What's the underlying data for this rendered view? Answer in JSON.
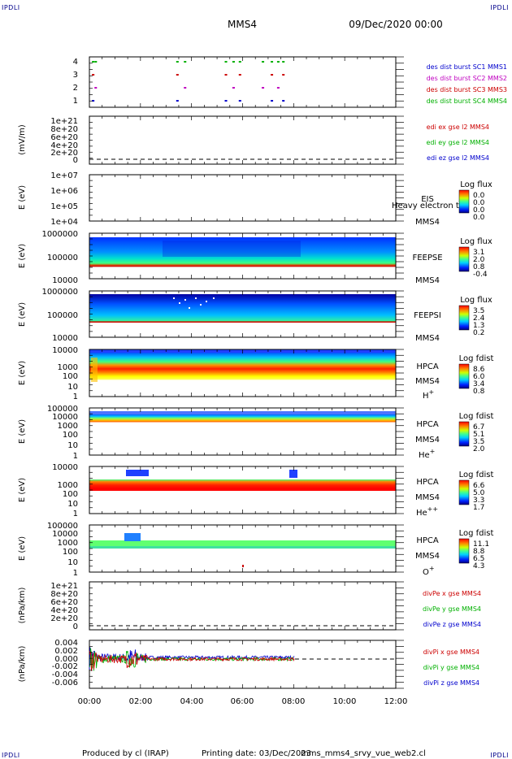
{
  "corner_label": "IPDLI",
  "header": {
    "spacecraft": "MMS4",
    "date": "09/Dec/2020 00:00"
  },
  "footer": {
    "produced_by": "Produced by cl (IRAP)",
    "printing_date": "Printing date: 03/Dec/2023",
    "script": "mms_mms4_srvy_vue_web2.cl"
  },
  "time_axis": {
    "range_hours": [
      0,
      12
    ],
    "tick_labels": [
      "00:00",
      "02:00",
      "04:00",
      "06:00",
      "08:00",
      "10:00",
      "12:00"
    ]
  },
  "chart_data": [
    {
      "type": "scatter",
      "id": "burst",
      "ylabel": "",
      "ylim": [
        0.5,
        4.5
      ],
      "ytick_labels": [
        "1",
        "2",
        "3",
        "4"
      ],
      "legend": [
        {
          "label": "des dist burst SC1 MMS1",
          "color": "#0000cd"
        },
        {
          "label": "des dist burst SC2 MMS2",
          "color": "#c000c0"
        },
        {
          "label": "des dist burst SC3 MMS3",
          "color": "#cc0000"
        },
        {
          "label": "des dist burst SC4 MMS4",
          "color": "#00b000"
        }
      ],
      "burst_times_hours": [
        0.1,
        0.2,
        3.4,
        3.7,
        5.3,
        5.6,
        5.85,
        6.75,
        7.1,
        7.35,
        7.55
      ]
    },
    {
      "type": "line",
      "id": "edi",
      "ylabel": "(mV/m)",
      "ytick_labels": [
        "0",
        "2e+20",
        "4e+20",
        "6e+20",
        "8e+20",
        "1e+21"
      ],
      "ylim": [
        0,
        1e+21
      ],
      "legend": [
        {
          "label": "edi ex gse l2 MMS4",
          "color": "#cc0000"
        },
        {
          "label": "edi ey gse l2 MMS4",
          "color": "#00b000"
        },
        {
          "label": "edi ez gse l2 MMS4",
          "color": "#0000cd"
        }
      ]
    },
    {
      "type": "heatmap",
      "id": "eis",
      "ylabel": "E (eV)",
      "ytick_labels": [
        "1e+04",
        "1e+05",
        "1e+06",
        "1e+07"
      ],
      "instrument": "EIS",
      "spacecraft": "MMS4",
      "extra_label": "Heavy electron to",
      "colorbar": {
        "title": "Log flux",
        "labels": [
          "0.0",
          "0.0",
          "0.0",
          "0.0"
        ]
      }
    },
    {
      "type": "heatmap",
      "id": "feepse",
      "ylabel": "E (eV)",
      "ytick_labels": [
        "10000",
        "100000",
        "1000000"
      ],
      "instrument": "FEEPSE",
      "spacecraft": "MMS4",
      "colorbar": {
        "title": "Log flux",
        "labels": [
          "3.1",
          "2.0",
          "0.8",
          "-0.4"
        ]
      }
    },
    {
      "type": "heatmap",
      "id": "feepsi",
      "ylabel": "E (eV)",
      "ytick_labels": [
        "10000",
        "100000",
        "1000000"
      ],
      "instrument": "FEEPSI",
      "spacecraft": "MMS4",
      "colorbar": {
        "title": "Log flux",
        "labels": [
          "3.5",
          "2.4",
          "1.3",
          "0.2"
        ]
      }
    },
    {
      "type": "heatmap",
      "id": "hpca_h",
      "ylabel": "E (eV)",
      "ytick_labels": [
        "1",
        "10",
        "100",
        "1000",
        "10000"
      ],
      "instrument": "HPCA",
      "spacecraft": "MMS4",
      "species": "H",
      "charge": "+",
      "colorbar": {
        "title": "Log fdist",
        "labels": [
          "8.6",
          "6.0",
          "3.4",
          "0.8"
        ]
      }
    },
    {
      "type": "heatmap",
      "id": "hpca_he",
      "ylabel": "E (eV)",
      "ytick_labels": [
        "1",
        "10",
        "100",
        "1000",
        "10000",
        "100000"
      ],
      "instrument": "HPCA",
      "spacecraft": "MMS4",
      "species": "He",
      "charge": "+",
      "colorbar": {
        "title": "Log fdist",
        "labels": [
          "6.7",
          "5.1",
          "3.5",
          "2.0"
        ]
      }
    },
    {
      "type": "heatmap",
      "id": "hpca_hepp",
      "ylabel": "E (eV)",
      "ytick_labels": [
        "1",
        "10",
        "100",
        "1000",
        "10000"
      ],
      "instrument": "HPCA",
      "spacecraft": "MMS4",
      "species": "He",
      "charge": "++",
      "colorbar": {
        "title": "Log fdist",
        "labels": [
          "6.6",
          "5.0",
          "3.3",
          "1.7"
        ]
      }
    },
    {
      "type": "heatmap",
      "id": "hpca_o",
      "ylabel": "E (eV)",
      "ytick_labels": [
        "1",
        "10",
        "100",
        "1000",
        "10000",
        "100000"
      ],
      "instrument": "HPCA",
      "spacecraft": "MMS4",
      "species": "O",
      "charge": "+",
      "colorbar": {
        "title": "Log fdist",
        "labels": [
          "11.1",
          "8.8",
          "6.5",
          "4.3"
        ]
      }
    },
    {
      "type": "line",
      "id": "divpe",
      "ylabel": "(nPa/km)",
      "ytick_labels": [
        "0",
        "2e+20",
        "4e+20",
        "6e+20",
        "8e+20",
        "1e+21"
      ],
      "ylim": [
        0,
        1e+21
      ],
      "legend": [
        {
          "label": "divPe x gse MMS4",
          "color": "#cc0000"
        },
        {
          "label": "divPe y gse MMS4",
          "color": "#00b000"
        },
        {
          "label": "divPe z gse MMS4",
          "color": "#0000cd"
        }
      ]
    },
    {
      "type": "line",
      "id": "divpi",
      "ylabel": "(nPa/km)",
      "ytick_labels": [
        "-0.006",
        "-0.004",
        "-0.002",
        "0.000",
        "0.002",
        "0.004"
      ],
      "ytick_values": [
        -0.006,
        -0.004,
        -0.002,
        0,
        0.002,
        0.004
      ],
      "ylim": [
        -0.0072,
        0.0046
      ],
      "data_end_hours": 8.05,
      "legend": [
        {
          "label": "divPi x gse MMS4",
          "color": "#cc0000"
        },
        {
          "label": "divPi y gse MMS4",
          "color": "#00b000"
        },
        {
          "label": "divPi z gse MMS4",
          "color": "#0000cd"
        }
      ]
    }
  ]
}
